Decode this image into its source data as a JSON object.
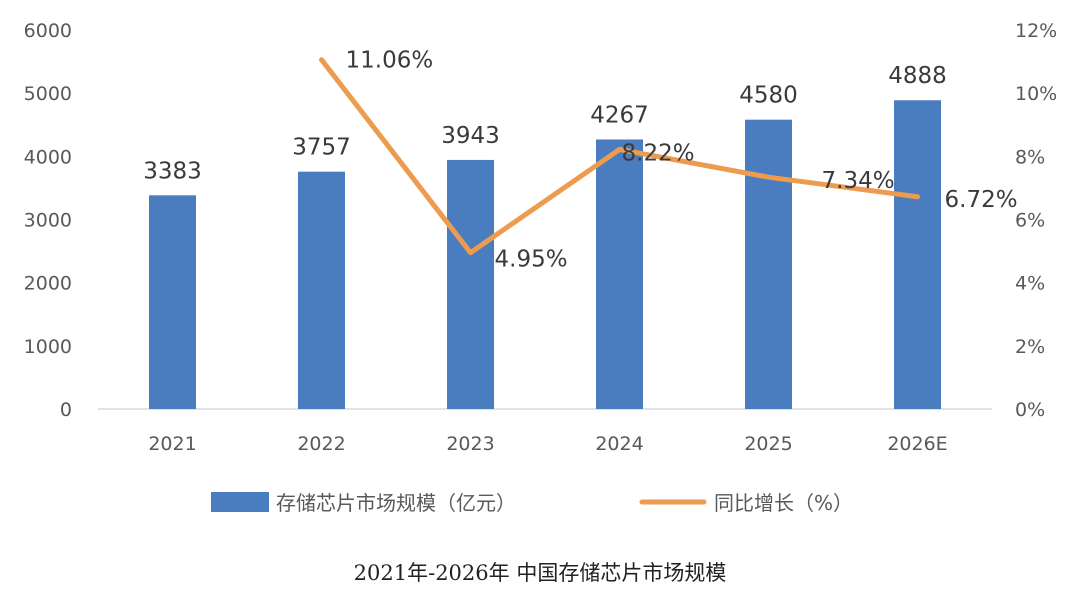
{
  "chart_data": {
    "type": "bar",
    "title": "2021年-2026年 中国存储芯片市场规模",
    "categories": [
      "2021",
      "2022",
      "2023",
      "2024",
      "2025",
      "2026E"
    ],
    "series": [
      {
        "name": "存储芯片市场规模（亿元）",
        "type": "bar",
        "axis": "left",
        "values": [
          3383,
          3757,
          3943,
          4267,
          4580,
          4888
        ],
        "labels": [
          "3383",
          "3757",
          "3943",
          "4267",
          "4580",
          "4888"
        ],
        "color": "#4a7dbf"
      },
      {
        "name": "同比增长（%）",
        "type": "line",
        "axis": "right",
        "values": [
          null,
          11.06,
          4.95,
          8.22,
          7.34,
          6.72
        ],
        "labels": [
          null,
          "11.06%",
          "4.95%",
          "8.22%",
          "7.34%",
          "6.72%"
        ],
        "color": "#ed9b4f"
      }
    ],
    "y_left": {
      "min": 0,
      "max": 6000,
      "ticks": [
        "0",
        "1000",
        "2000",
        "3000",
        "4000",
        "5000",
        "6000"
      ]
    },
    "y_right": {
      "min": 0,
      "max": 12,
      "ticks": [
        "0%",
        "2%",
        "4%",
        "6%",
        "8%",
        "10%",
        "12%"
      ]
    },
    "grid": false,
    "legend_position": "bottom"
  }
}
